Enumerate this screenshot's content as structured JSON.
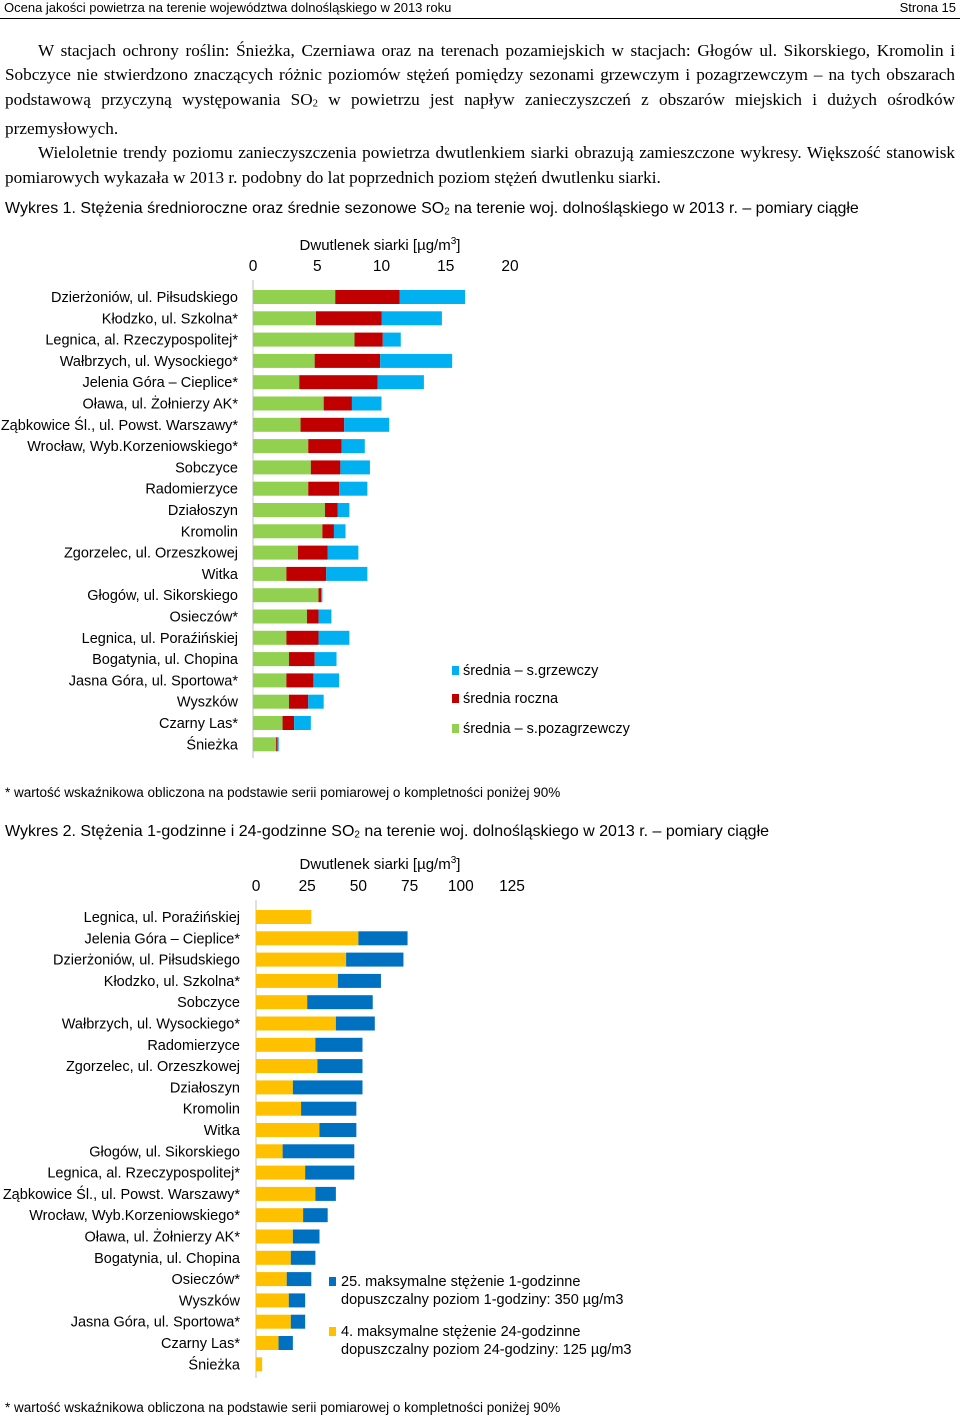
{
  "header": {
    "left": "Ocena jakości powietrza na terenie województwa dolnośląskiego w 2013 roku",
    "right": "Strona 15"
  },
  "text": {
    "p1_a": "W stacjach ochrony roślin: Śnieżka, Czerniawa oraz na terenach pozamiejskich w stacjach: Głogów ul. Sikorskiego, Kromolin i Sobczyce nie stwierdzono znaczących różnic poziomów stężeń pomiędzy sezonami grzewczym i pozagrzewczym – na tych obszarach podstawową przyczyną występowania SO",
    "p1_sub": "2",
    "p1_b": " w powietrzu jest napływ zanieczyszczeń z obszarów miejskich i dużych ośrodków przemysłowych.",
    "p2": "Wieloletnie trendy poziomu zanieczyszczenia powietrza dwutlenkiem siarki obrazują zamieszczone wykresy. Większość stanowisk pomiarowych wykazała w 2013 r. podobny do lat poprzednich poziom stężeń dwutlenku siarki."
  },
  "caption1": {
    "a": "Wykres 1. Stężenia średnioroczne oraz średnie sezonowe SO",
    "sub": "2",
    "b": " na terenie woj. dolnośląskiego w 2013 r. – pomiary ciągłe"
  },
  "caption2": {
    "a": "Wykres 2. Stężenia 1-godzinne i 24-godzinne SO",
    "sub": "2",
    "b": " na terenie woj. dolnośląskiego w 2013 r. – pomiary ciągłe"
  },
  "footnote1": "* wartość wskaźnikowa obliczona na podstawie serii pomiarowej o kompletności poniżej 90%",
  "footnote2": "* wartość wskaźnikowa obliczona na podstawie serii pomiarowej o kompletności poniżej 90%",
  "chart_data": [
    {
      "type": "bar",
      "orientation": "horizontal",
      "stacked": true,
      "title_main": "Dwutlenek siarki [µg/m",
      "title_sup": "3",
      "title_end": "]",
      "xlim": [
        0,
        20
      ],
      "xticks": [
        0,
        5,
        10,
        15,
        20
      ],
      "xaxis_position": "top",
      "legend_position": "bottom-right",
      "colors": [
        "#92d050",
        "#c00000",
        "#00b0f0"
      ],
      "categories": [
        "Dzierżoniów, ul. Piłsudskiego",
        "Kłodzko, ul. Szkolna*",
        "Legnica, al. Rzeczypospolitej*",
        "Wałbrzych, ul. Wysockiego*",
        "Jelenia Góra – Cieplice*",
        "Oława, ul. Żołnierzy AK*",
        "Ząbkowice Śl., ul. Powst. Warszawy*",
        "Wrocław, Wyb.Korzeniowskiego*",
        "Sobczyce",
        "Radomierzyce",
        "Działoszyn",
        "Kromolin",
        "Zgorzelec, ul. Orzeszkowej",
        "Witka",
        "Głogów, ul. Sikorskiego",
        "Osieczów*",
        "Legnica, ul. Poraźińskiej",
        "Bogatynia, ul. Chopina",
        "Jasna Góra, ul. Sportowa*",
        "Wyszków",
        "Czarny Las*",
        "Śnieżka"
      ],
      "series": [
        {
          "name": "średnia – s.pozagrzewczy",
          "values": [
            6.4,
            4.9,
            7.9,
            4.8,
            3.6,
            5.5,
            3.7,
            4.3,
            4.5,
            4.3,
            5.6,
            5.4,
            3.5,
            2.6,
            5.1,
            4.2,
            2.6,
            2.8,
            2.6,
            2.8,
            2.3,
            1.8
          ]
        },
        {
          "name": "średnia roczna",
          "values": [
            5.0,
            5.1,
            2.2,
            5.1,
            6.1,
            2.2,
            3.4,
            2.6,
            2.3,
            2.4,
            1.0,
            0.9,
            2.3,
            3.1,
            0.2,
            0.9,
            2.5,
            2.0,
            2.1,
            1.5,
            0.9,
            0.1
          ]
        },
        {
          "name": "średnia – s.grzewczy",
          "values": [
            5.1,
            4.7,
            1.4,
            5.6,
            3.6,
            2.3,
            3.5,
            1.8,
            2.3,
            2.2,
            0.9,
            0.9,
            2.4,
            3.2,
            0.1,
            1.0,
            2.4,
            1.7,
            2.0,
            1.2,
            1.3,
            0.1
          ]
        }
      ]
    },
    {
      "type": "bar",
      "orientation": "horizontal",
      "stacked": true,
      "title_main": "Dwutlenek siarki [µg/m",
      "title_sup": "3",
      "title_end": "]",
      "xlim": [
        0,
        125
      ],
      "xticks": [
        0,
        25,
        50,
        75,
        100,
        125
      ],
      "xaxis_position": "top",
      "legend_position": "bottom-right",
      "colors": [
        "#ffc000",
        "#0070c0"
      ],
      "categories": [
        "Legnica, ul. Poraźińskiej",
        "Jelenia Góra – Cieplice*",
        "Dzierżoniów, ul. Piłsudskiego",
        "Kłodzko, ul. Szkolna*",
        "Sobczyce",
        "Wałbrzych, ul. Wysockiego*",
        "Radomierzyce",
        "Zgorzelec, ul. Orzeszkowej",
        "Działoszyn",
        "Kromolin",
        "Witka",
        "Głogów, ul. Sikorskiego",
        "Legnica, al. Rzeczypospolitej*",
        "Ząbkowice Śl., ul. Powst. Warszawy*",
        "Wrocław, Wyb.Korzeniowskiego*",
        "Oława, ul. Żołnierzy AK*",
        "Bogatynia, ul. Chopina",
        "Osieczów*",
        "Wyszków",
        "Jasna Góra, ul. Sportowa*",
        "Czarny Las*",
        "Śnieżka"
      ],
      "series": [
        {
          "name": "4. maksymalne stężenie 24-godzinne",
          "sub_label": "dopuszczalny poziom 24-godziny: 125 µg/m3",
          "values": [
            27,
            50,
            44,
            40,
            25,
            39,
            29,
            30,
            18,
            22,
            31,
            13,
            24,
            29,
            23,
            18,
            17,
            15,
            16,
            17,
            11,
            3
          ]
        },
        {
          "name": "25. maksymalne stężenie 1-godzinne",
          "sub_label": "dopuszczalny poziom 1-godziny: 350 µg/m3",
          "values": [
            0,
            24,
            28,
            21,
            32,
            19,
            23,
            22,
            34,
            27,
            18,
            35,
            24,
            10,
            12,
            13,
            12,
            12,
            8,
            7,
            7,
            0
          ]
        }
      ]
    }
  ]
}
